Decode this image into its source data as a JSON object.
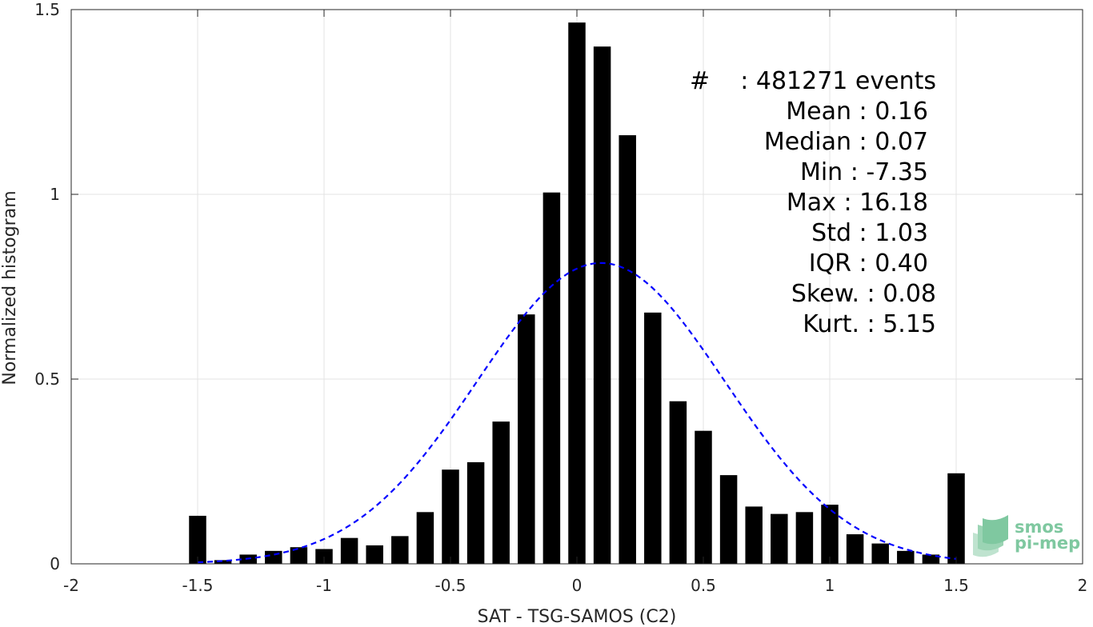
{
  "chart_data": {
    "type": "bar",
    "xlabel": "SAT - TSG-SAMOS (C2)",
    "ylabel": "Normalized histogram",
    "xlim": [
      -2,
      2
    ],
    "ylim": [
      0,
      1.5
    ],
    "xticks": [
      -2,
      -1.5,
      -1,
      -0.5,
      0,
      0.5,
      1,
      1.5,
      2
    ],
    "xtick_labels": [
      "-2",
      "-1.5",
      "-1",
      "-0.5",
      "0",
      "0.5",
      "1",
      "1.5",
      "2"
    ],
    "yticks": [
      0,
      0.5,
      1,
      1.5
    ],
    "ytick_labels": [
      "0",
      "0.5",
      "1",
      "1.5"
    ],
    "grid": true,
    "bar_color": "#000000",
    "bars": {
      "x": [
        -1.5,
        -1.4,
        -1.3,
        -1.2,
        -1.1,
        -1.0,
        -0.9,
        -0.8,
        -0.7,
        -0.6,
        -0.5,
        -0.4,
        -0.3,
        -0.2,
        -0.1,
        0.0,
        0.1,
        0.2,
        0.3,
        0.4,
        0.5,
        0.6,
        0.7,
        0.8,
        0.9,
        1.0,
        1.1,
        1.2,
        1.3,
        1.4,
        1.5
      ],
      "values": [
        0.13,
        0.01,
        0.025,
        0.035,
        0.045,
        0.04,
        0.07,
        0.05,
        0.075,
        0.14,
        0.255,
        0.275,
        0.385,
        0.675,
        1.005,
        1.465,
        1.4,
        1.16,
        0.68,
        0.44,
        0.36,
        0.24,
        0.155,
        0.135,
        0.14,
        0.16,
        0.08,
        0.055,
        0.035,
        0.025,
        0.245
      ]
    },
    "fit": {
      "type": "gaussian",
      "mean": 0.095,
      "std": 0.49,
      "color": "#0000ff",
      "style": "dashed",
      "x_range": [
        -1.5,
        1.5
      ]
    },
    "annotations": [
      {
        "label": "#",
        "sep": ": ",
        "value": "481271 events"
      },
      {
        "label": "Mean",
        "sep": " : ",
        "value": "0.16"
      },
      {
        "label": "Median",
        "sep": " : ",
        "value": "0.07"
      },
      {
        "label": "Min",
        "sep": " : ",
        "value": "-7.35"
      },
      {
        "label": "Max",
        "sep": " : ",
        "value": "16.18"
      },
      {
        "label": "Std",
        "sep": " : ",
        "value": "1.03"
      },
      {
        "label": "IQR",
        "sep": " : ",
        "value": "0.40"
      },
      {
        "label": "Skew.",
        "sep": " : ",
        "value": "0.08"
      },
      {
        "label": "Kurt.",
        "sep": " : ",
        "value": "5.15"
      }
    ]
  },
  "logo": {
    "line1": "smos",
    "line2": "pi-mep",
    "color": "#7fc8a0"
  }
}
